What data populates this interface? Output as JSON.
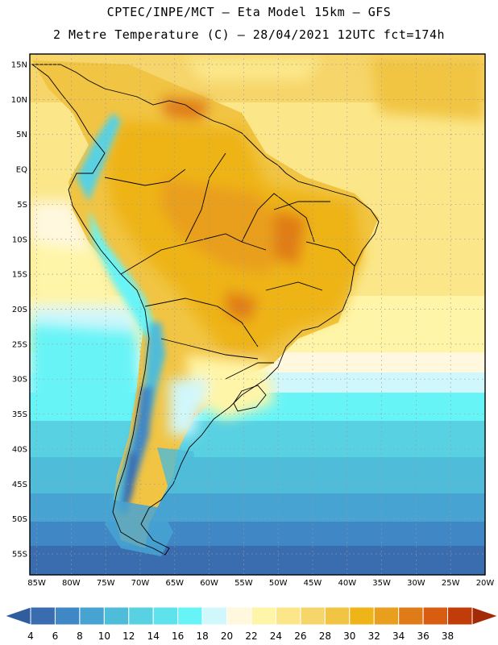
{
  "header": {
    "line1": "CPTEC/INPE/MCT –  Eta Model 15km – GFS",
    "line2": "2 Metre Temperature (C) – 28/04/2021 12UTC fct=174h"
  },
  "map": {
    "region": "South America",
    "lat_labels": [
      "15N",
      "10N",
      "5N",
      "EQ",
      "5S",
      "10S",
      "15S",
      "20S",
      "25S",
      "30S",
      "35S",
      "40S",
      "45S",
      "50S",
      "55S"
    ],
    "lon_labels": [
      "85W",
      "80W",
      "75W",
      "70W",
      "65W",
      "60W",
      "55W",
      "50W",
      "45W",
      "40W",
      "35W",
      "30W",
      "25W",
      "20W"
    ],
    "lat_values": [
      15,
      10,
      5,
      0,
      -5,
      -10,
      -15,
      -20,
      -25,
      -30,
      -35,
      -40,
      -45,
      -50,
      -55
    ],
    "lon_values": [
      -85,
      -80,
      -75,
      -70,
      -65,
      -60,
      -55,
      -50,
      -45,
      -40,
      -35,
      -30,
      -25,
      -20
    ],
    "lat_range": [
      -58,
      16.5
    ],
    "lon_range": [
      -86,
      -20
    ]
  },
  "colorbar": {
    "labels": [
      "4",
      "6",
      "8",
      "10",
      "12",
      "14",
      "16",
      "18",
      "20",
      "22",
      "24",
      "26",
      "28",
      "30",
      "32",
      "34",
      "36",
      "38"
    ],
    "colors": [
      "#3a6cb0",
      "#3f87c5",
      "#46a3d2",
      "#4fbcd9",
      "#58d1e2",
      "#5ee3ec",
      "#67f4f7",
      "#d0f7fb",
      "#fff8df",
      "#fff5a8",
      "#fbe78a",
      "#f6d56a",
      "#f1c443",
      "#eeb418",
      "#e99f1e",
      "#e07c18",
      "#d85d10",
      "#c23c0a"
    ],
    "low_color": "#2f5d9e",
    "high_color": "#a32a06"
  }
}
